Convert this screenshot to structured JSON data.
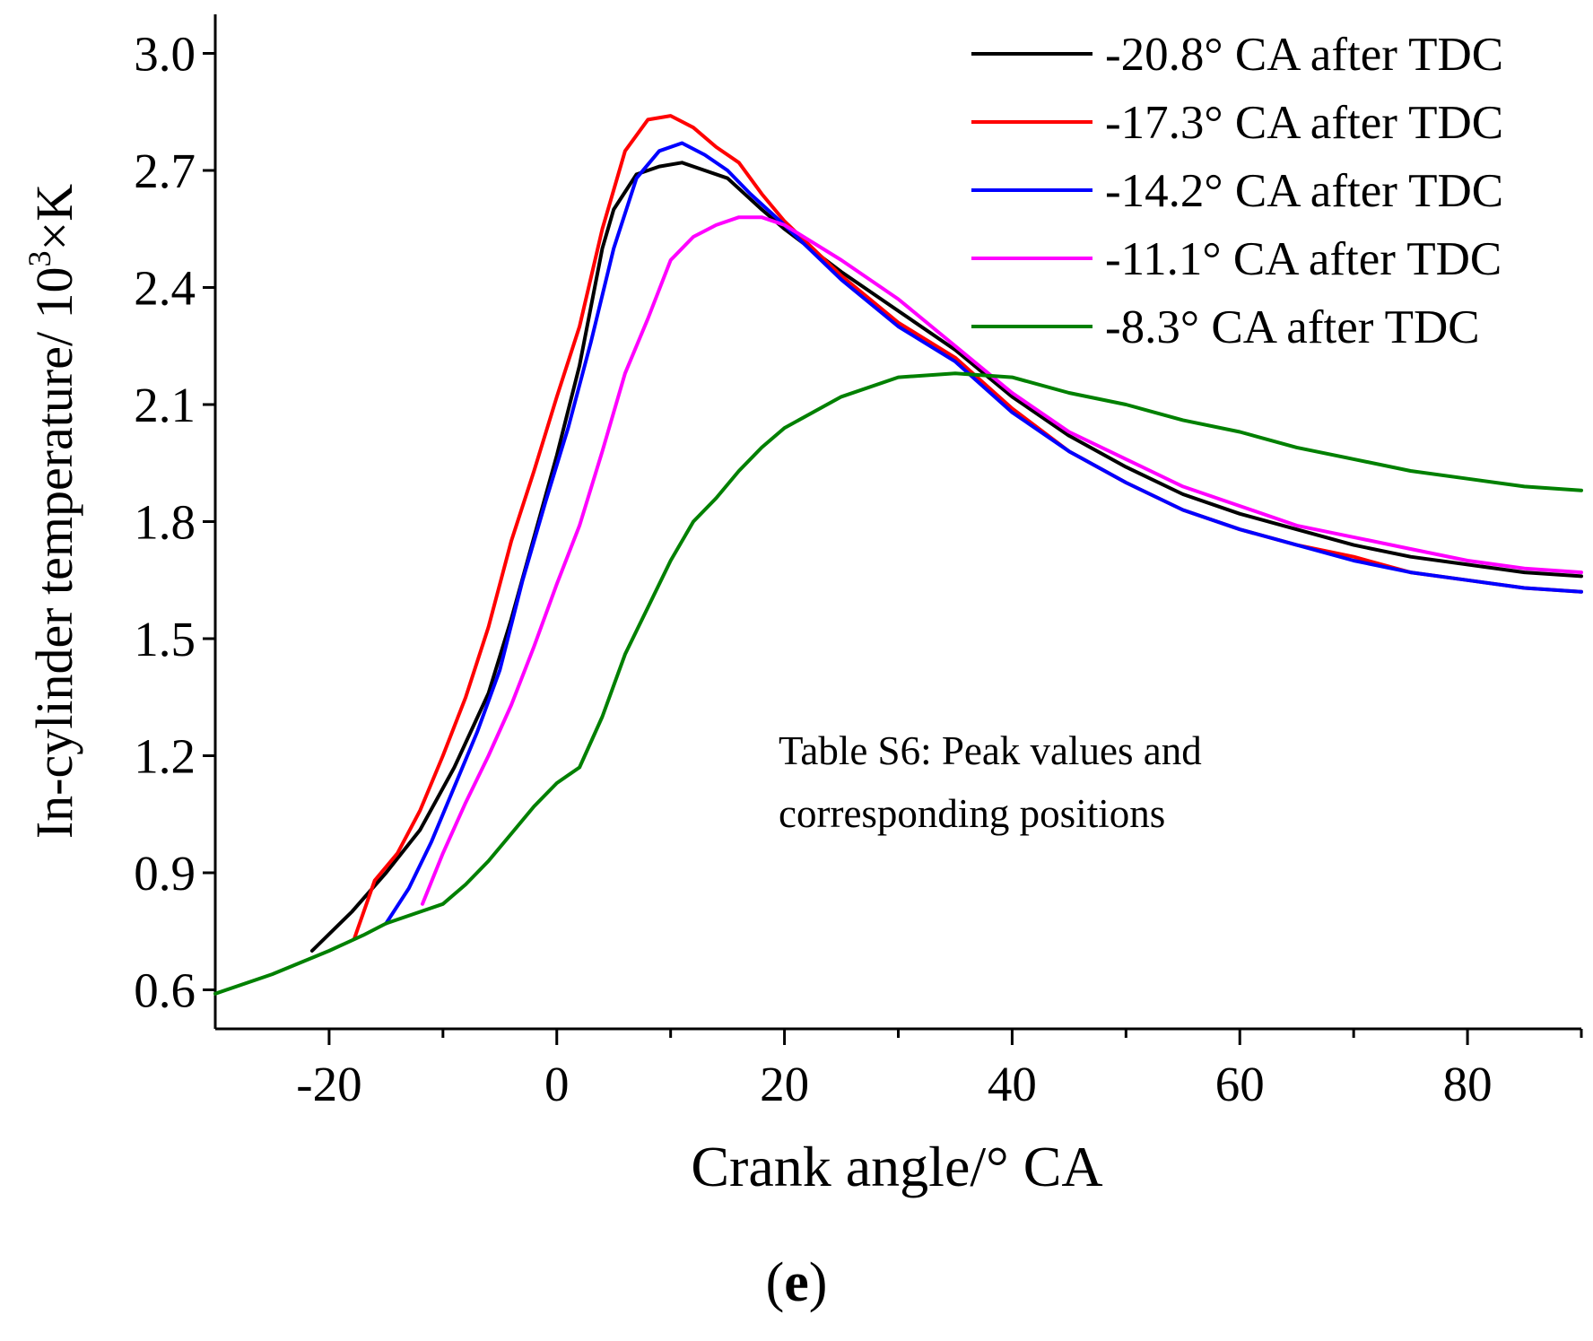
{
  "chart_data": {
    "type": "line",
    "title": "",
    "xlabel": "Crank angle/° CA",
    "ylabel": "In-cylinder temperature/ 10",
    "ylabel_sup": "3",
    "ylabel_tail": "×K",
    "xlim": [
      -30,
      90
    ],
    "ylim": [
      0.5,
      3.1
    ],
    "xticks": [
      -20,
      0,
      20,
      40,
      60,
      80
    ],
    "xtick_labels": [
      "-20",
      "0",
      "20",
      "40",
      "60",
      "80"
    ],
    "yticks": [
      0.6,
      0.9,
      1.2,
      1.5,
      1.8,
      2.1,
      2.4,
      2.7,
      3.0
    ],
    "ytick_labels": [
      "0.6",
      "0.9",
      "1.2",
      "1.5",
      "1.8",
      "2.1",
      "2.4",
      "2.7",
      "3.0"
    ],
    "grid": false,
    "legend_position": "top-right",
    "annotation": {
      "lines": [
        "Table S6: Peak values and",
        "corresponding positions"
      ]
    },
    "series": [
      {
        "name": "-20.8° CA after TDC",
        "color": "#000000",
        "x": [
          -21.5,
          -18,
          -15,
          -12,
          -9,
          -6,
          -4,
          -2,
          0,
          2,
          4,
          5,
          7,
          9,
          11,
          13,
          15,
          18,
          20,
          25,
          30,
          35,
          40,
          45,
          50,
          55,
          60,
          65,
          70,
          75,
          80,
          85,
          90
        ],
        "y": [
          0.7,
          0.8,
          0.9,
          1.01,
          1.17,
          1.36,
          1.55,
          1.76,
          1.97,
          2.2,
          2.5,
          2.6,
          2.69,
          2.71,
          2.72,
          2.7,
          2.68,
          2.6,
          2.55,
          2.44,
          2.34,
          2.24,
          2.12,
          2.02,
          1.94,
          1.87,
          1.82,
          1.78,
          1.74,
          1.71,
          1.69,
          1.67,
          1.66
        ]
      },
      {
        "name": "-17.3° CA after TDC",
        "color": "#ff0000",
        "x": [
          -17.8,
          -16,
          -14,
          -12,
          -10,
          -8,
          -6,
          -4,
          -2,
          0,
          2,
          4,
          6,
          8,
          10,
          12,
          14,
          16,
          18,
          20,
          25,
          30,
          35,
          40,
          45,
          50,
          55,
          60,
          65,
          70,
          75,
          80,
          85,
          90
        ],
        "y": [
          0.73,
          0.88,
          0.95,
          1.06,
          1.2,
          1.35,
          1.53,
          1.75,
          1.93,
          2.12,
          2.3,
          2.55,
          2.75,
          2.83,
          2.84,
          2.81,
          2.76,
          2.72,
          2.64,
          2.57,
          2.43,
          2.31,
          2.22,
          2.09,
          1.98,
          1.9,
          1.83,
          1.78,
          1.74,
          1.71,
          1.67,
          1.65,
          1.63,
          1.62
        ]
      },
      {
        "name": "-14.2° CA after TDC",
        "color": "#0000ff",
        "x": [
          -15,
          -13,
          -11,
          -9,
          -7,
          -5,
          -3,
          -1,
          1,
          3,
          5,
          7,
          9,
          11,
          13,
          15,
          17,
          20,
          25,
          30,
          35,
          40,
          45,
          50,
          55,
          60,
          65,
          70,
          75,
          80,
          85,
          90
        ],
        "y": [
          0.77,
          0.86,
          0.98,
          1.12,
          1.26,
          1.42,
          1.65,
          1.85,
          2.04,
          2.26,
          2.5,
          2.68,
          2.75,
          2.77,
          2.74,
          2.7,
          2.64,
          2.56,
          2.42,
          2.3,
          2.21,
          2.08,
          1.98,
          1.9,
          1.83,
          1.78,
          1.74,
          1.7,
          1.67,
          1.65,
          1.63,
          1.62
        ]
      },
      {
        "name": "-11.1° CA after TDC",
        "color": "#ff00ff",
        "x": [
          -11.8,
          -10,
          -8,
          -6,
          -4,
          -2,
          0,
          2,
          4,
          6,
          8,
          10,
          12,
          14,
          16,
          18,
          20,
          25,
          30,
          35,
          40,
          45,
          50,
          55,
          60,
          65,
          70,
          75,
          80,
          85,
          90
        ],
        "y": [
          0.82,
          0.95,
          1.08,
          1.2,
          1.33,
          1.48,
          1.64,
          1.79,
          1.98,
          2.18,
          2.32,
          2.47,
          2.53,
          2.56,
          2.58,
          2.58,
          2.56,
          2.47,
          2.37,
          2.25,
          2.13,
          2.03,
          1.96,
          1.89,
          1.84,
          1.79,
          1.76,
          1.73,
          1.7,
          1.68,
          1.67
        ]
      },
      {
        "name": "-8.3° CA after TDC",
        "color": "#008000",
        "x": [
          -30,
          -25,
          -20,
          -17,
          -15,
          -12,
          -10,
          -8,
          -6,
          -4,
          -2,
          0,
          2,
          4,
          6,
          8,
          10,
          12,
          14,
          16,
          18,
          20,
          25,
          30,
          35,
          40,
          45,
          50,
          55,
          60,
          65,
          70,
          75,
          80,
          85,
          90
        ],
        "y": [
          0.59,
          0.64,
          0.7,
          0.74,
          0.77,
          0.8,
          0.82,
          0.87,
          0.93,
          1.0,
          1.07,
          1.13,
          1.17,
          1.3,
          1.46,
          1.58,
          1.7,
          1.8,
          1.86,
          1.93,
          1.99,
          2.04,
          2.12,
          2.17,
          2.18,
          2.17,
          2.13,
          2.1,
          2.06,
          2.03,
          1.99,
          1.96,
          1.93,
          1.91,
          1.89,
          1.88
        ]
      }
    ]
  },
  "panel_label": {
    "open": "(",
    "letter": "e",
    "close": ")"
  }
}
